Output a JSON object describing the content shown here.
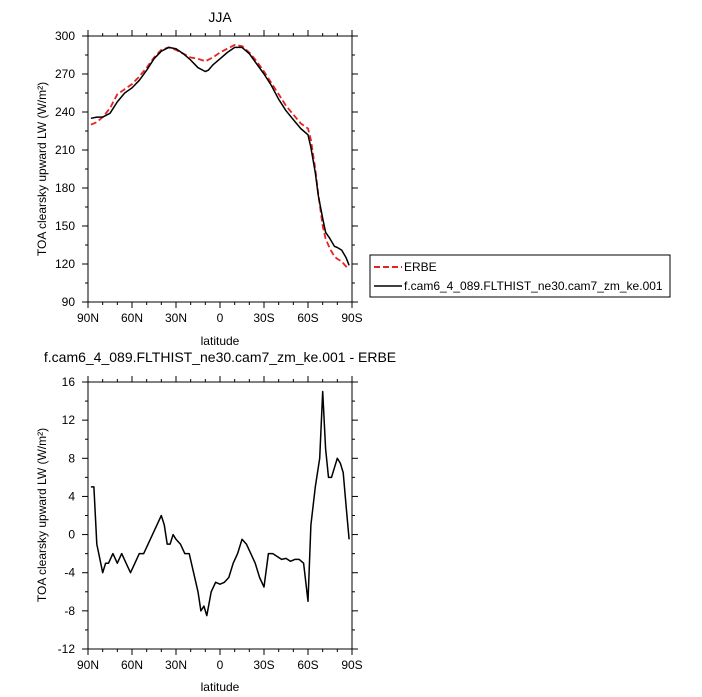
{
  "chart_data": [
    {
      "type": "line",
      "title": "JJA",
      "xlabel": "latitude",
      "ylabel": "TOA clearsky upward LW (W/m²)",
      "xlim": [
        90,
        -90
      ],
      "ylim": [
        90,
        300
      ],
      "x_ticks": [
        90,
        60,
        30,
        0,
        -30,
        -60,
        -90
      ],
      "x_tick_labels": [
        "90N",
        "60N",
        "30N",
        "0",
        "30S",
        "60S",
        "90S"
      ],
      "y_ticks": [
        90,
        120,
        150,
        180,
        210,
        240,
        270,
        300
      ],
      "y_tick_labels": [
        "90",
        "120",
        "150",
        "180",
        "210",
        "240",
        "270",
        "300"
      ],
      "legend_position": "right",
      "series": [
        {
          "name": "ERBE",
          "color": "#e8231f",
          "dash": "dashed",
          "x": [
            88,
            84,
            80,
            75,
            70,
            65,
            60,
            55,
            50,
            45,
            40,
            35,
            30,
            25,
            20,
            15,
            10,
            5,
            0,
            -5,
            -10,
            -15,
            -20,
            -25,
            -30,
            -35,
            -40,
            -45,
            -50,
            -55,
            -60,
            -62,
            -65,
            -67,
            -70,
            -72,
            -75,
            -78,
            -80,
            -83,
            -86,
            -88
          ],
          "y": [
            230,
            232,
            236,
            243,
            254,
            258,
            262,
            268,
            275,
            283,
            289,
            291,
            289,
            286,
            283,
            282,
            280,
            283,
            287,
            290,
            293,
            292,
            287,
            280,
            272,
            263,
            254,
            245,
            238,
            231,
            227,
            218,
            195,
            175,
            150,
            140,
            132,
            126,
            124,
            122,
            118,
            116
          ]
        },
        {
          "name": "f.cam6_4_089.FLTHIST_ne30.cam7_zm_ke.001",
          "color": "#000000",
          "dash": "solid",
          "x": [
            88,
            84,
            80,
            75,
            70,
            65,
            60,
            55,
            50,
            45,
            40,
            35,
            30,
            25,
            20,
            15,
            10,
            8,
            5,
            0,
            -5,
            -10,
            -15,
            -20,
            -25,
            -30,
            -35,
            -40,
            -45,
            -50,
            -55,
            -60,
            -62,
            -65,
            -67,
            -70,
            -72,
            -75,
            -78,
            -80,
            -83,
            -86,
            -88
          ],
          "y": [
            235,
            236,
            236,
            239,
            248,
            255,
            259,
            265,
            273,
            282,
            288,
            291,
            290,
            286,
            281,
            275,
            272,
            273,
            277,
            282,
            287,
            291,
            291,
            286,
            278,
            270,
            261,
            250,
            241,
            234,
            227,
            222,
            212,
            192,
            174,
            156,
            145,
            140,
            134,
            133,
            131,
            125,
            119
          ]
        }
      ]
    },
    {
      "type": "line",
      "title": "f.cam6_4_089.FLTHIST_ne30.cam7_zm_ke.001 - ERBE",
      "xlabel": "latitude",
      "ylabel": "TOA clearsky upward LW (W/m²)",
      "xlim": [
        90,
        -90
      ],
      "ylim": [
        -12,
        16
      ],
      "x_ticks": [
        90,
        60,
        30,
        0,
        -30,
        -60,
        -90
      ],
      "x_tick_labels": [
        "90N",
        "60N",
        "30N",
        "0",
        "30S",
        "60S",
        "90S"
      ],
      "y_ticks": [
        -12,
        -8,
        -4,
        0,
        4,
        8,
        12,
        16
      ],
      "y_tick_labels": [
        "-12",
        "-8",
        "-4",
        "0",
        "4",
        "8",
        "12",
        "16"
      ],
      "series": [
        {
          "color": "#000000",
          "dash": "solid",
          "x": [
            88,
            86,
            84,
            80,
            78,
            76,
            73,
            70,
            67,
            64,
            61,
            58,
            55,
            52,
            49,
            46,
            43,
            40,
            38,
            36,
            34,
            32,
            30,
            27,
            24,
            21,
            18,
            15,
            13,
            11,
            9,
            6,
            3,
            0,
            -3,
            -6,
            -9,
            -12,
            -15,
            -18,
            -21,
            -24,
            -27,
            -30,
            -33,
            -36,
            -39,
            -42,
            -45,
            -48,
            -51,
            -54,
            -57,
            -60,
            -62,
            -65,
            -68,
            -70,
            -72,
            -74,
            -76,
            -78,
            -80,
            -82,
            -84,
            -86,
            -88
          ],
          "y": [
            5,
            5,
            -1,
            -4,
            -3,
            -3,
            -2,
            -3,
            -2,
            -3,
            -4,
            -3,
            -2,
            -2,
            -1,
            0,
            1,
            2,
            1,
            -1,
            -1,
            0,
            -0.5,
            -1,
            -2,
            -2,
            -4,
            -6,
            -8,
            -7.5,
            -8.5,
            -6,
            -5,
            -5.2,
            -5,
            -4.5,
            -3,
            -2,
            -0.5,
            -1,
            -2,
            -3,
            -4.5,
            -5.5,
            -2,
            -2,
            -2.3,
            -2.6,
            -2.5,
            -2.8,
            -2.6,
            -2.6,
            -3,
            -7,
            1,
            5,
            8,
            15,
            9,
            6,
            6,
            7,
            8,
            7.5,
            6.5,
            3,
            -0.5
          ]
        }
      ]
    }
  ]
}
